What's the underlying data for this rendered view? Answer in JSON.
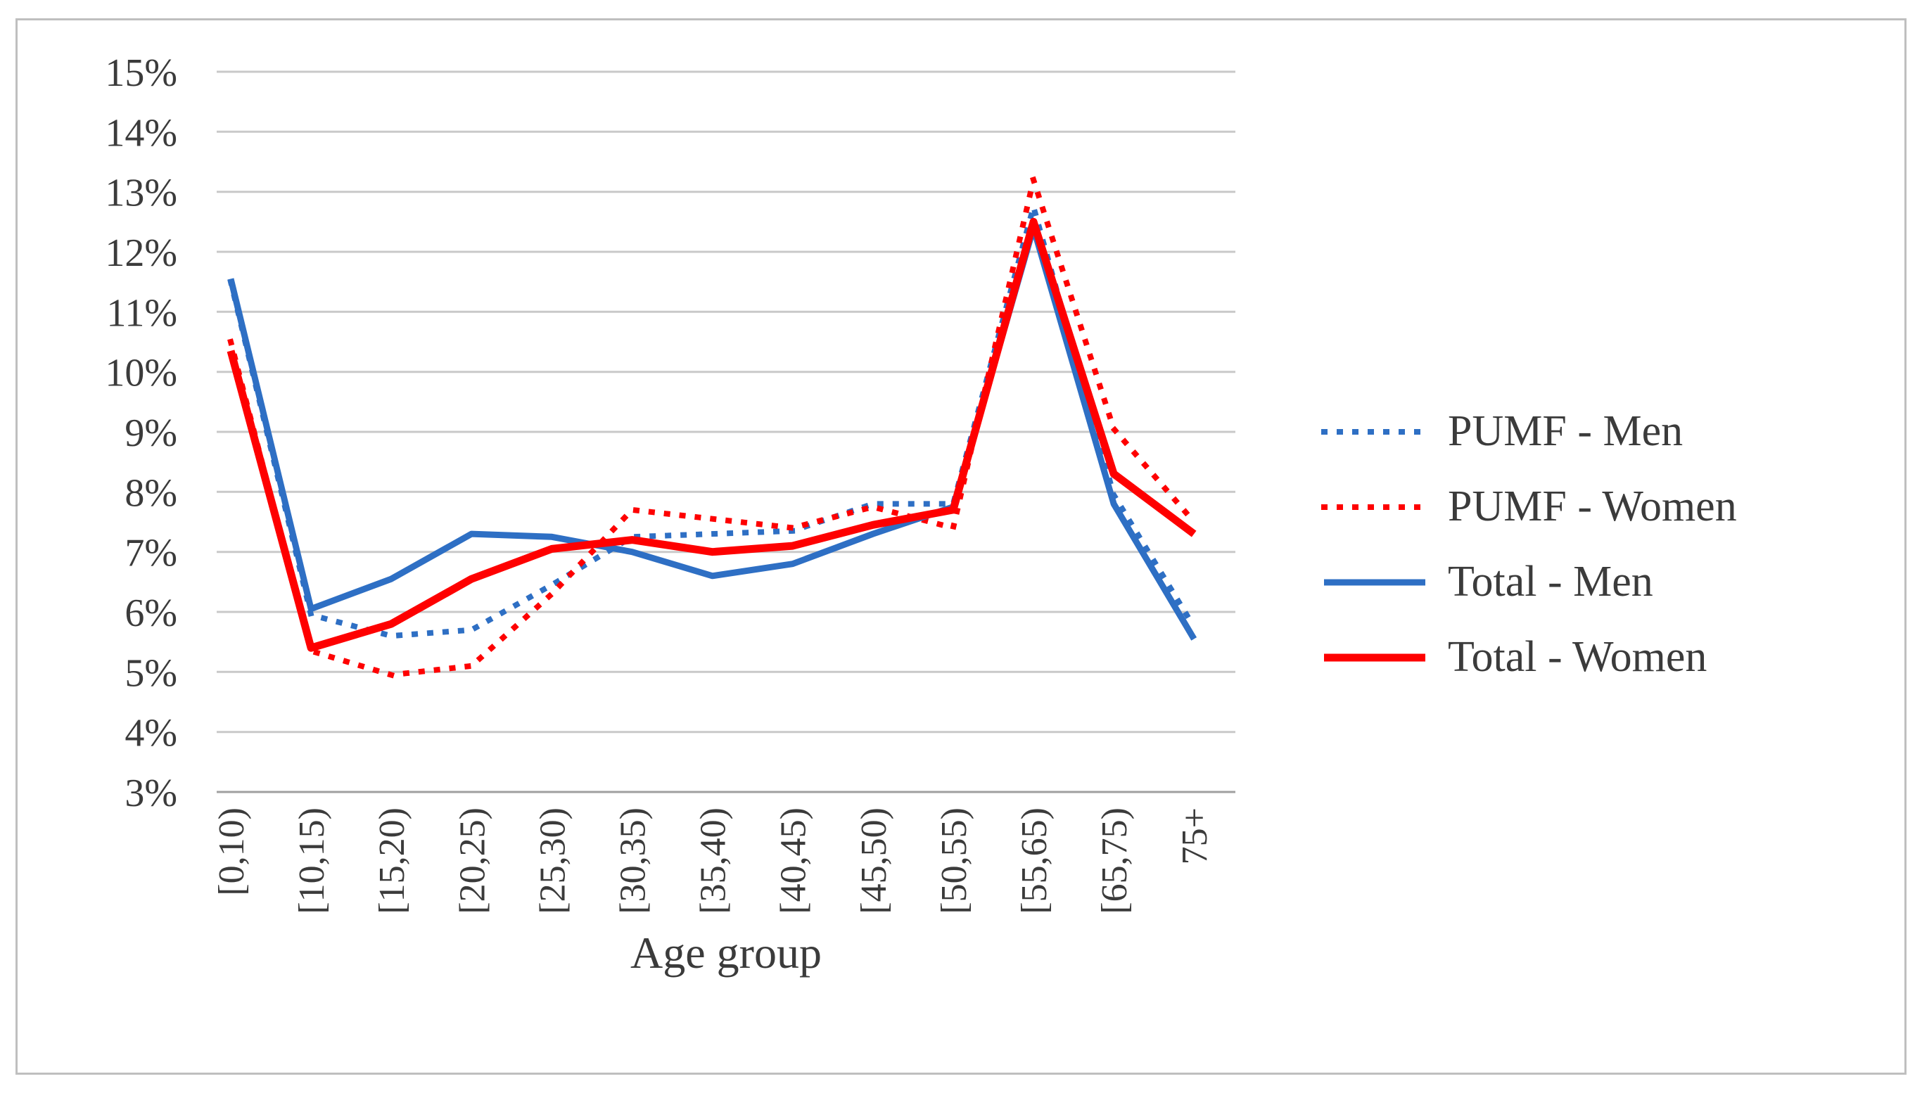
{
  "colors": {
    "blue": "#2e6fc4",
    "red": "#fe0000",
    "grid": "#c9c9c9",
    "axis": "#9f9f9f",
    "text": "#3b3b3b",
    "border": "#bfbfbf"
  },
  "chart_data": {
    "type": "line",
    "title": "",
    "xlabel": "Age group",
    "ylabel": "",
    "grid": "horizontal",
    "legend_position": "right",
    "ylim": [
      3,
      15
    ],
    "y_tick_step": 1,
    "y_tick_labels": [
      "3%",
      "4%",
      "5%",
      "6%",
      "7%",
      "8%",
      "9%",
      "10%",
      "11%",
      "12%",
      "13%",
      "14%",
      "15%"
    ],
    "categories": [
      "[0,10)",
      "[10,15)",
      "[15,20)",
      "[20,25)",
      "[25,30)",
      "[30,35)",
      "[35,40)",
      "[40,45)",
      "[45,50)",
      "[50,55)",
      "[55,65)",
      "[65,75)",
      "75+"
    ],
    "series": [
      {
        "name": "PUMF - Men",
        "color": "#2e6fc4",
        "style": "dotted",
        "width": 8,
        "values": [
          11.5,
          5.95,
          5.6,
          5.7,
          6.45,
          7.25,
          7.3,
          7.35,
          7.8,
          7.8,
          12.75,
          7.95,
          5.75
        ]
      },
      {
        "name": "PUMF - Women",
        "color": "#fe0000",
        "style": "dotted",
        "width": 8,
        "values": [
          10.5,
          5.35,
          4.95,
          5.1,
          6.3,
          7.7,
          7.55,
          7.4,
          7.75,
          7.4,
          13.2,
          9.05,
          7.5
        ]
      },
      {
        "name": "Total - Men",
        "color": "#2e6fc4",
        "style": "solid",
        "width": 9,
        "values": [
          11.55,
          6.05,
          6.55,
          7.3,
          7.25,
          7.0,
          6.6,
          6.8,
          7.3,
          7.75,
          12.4,
          7.8,
          5.55
        ]
      },
      {
        "name": "Total - Women",
        "color": "#fe0000",
        "style": "solid",
        "width": 11,
        "values": [
          10.35,
          5.4,
          5.8,
          6.55,
          7.05,
          7.2,
          7.0,
          7.1,
          7.45,
          7.7,
          12.5,
          8.3,
          7.3
        ]
      }
    ]
  },
  "legend": {
    "entries": [
      {
        "label": "PUMF - Men"
      },
      {
        "label": "PUMF - Women"
      },
      {
        "label": "Total - Men"
      },
      {
        "label": "Total - Women"
      }
    ]
  },
  "figure": {
    "x_axis_title": "Age group"
  }
}
